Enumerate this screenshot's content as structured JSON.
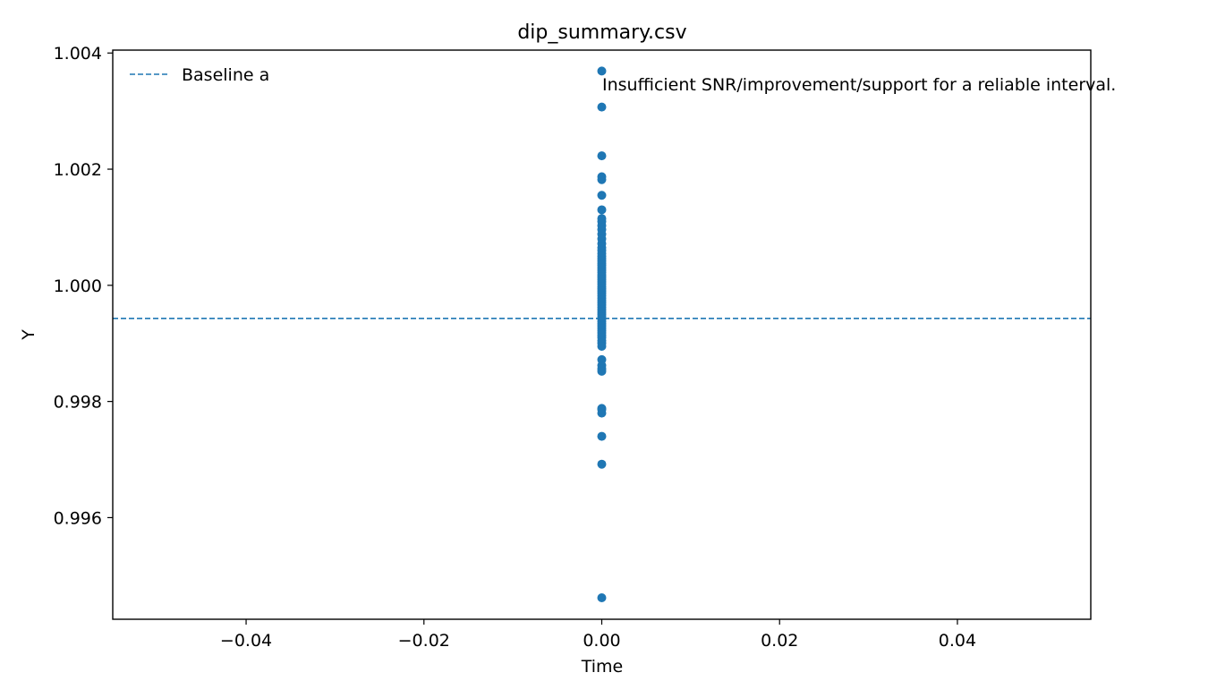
{
  "chart_data": {
    "type": "scatter",
    "title": "dip_summary.csv",
    "xlabel": "Time",
    "ylabel": "Y",
    "xlim": [
      -0.055,
      0.055
    ],
    "ylim": [
      0.99425,
      1.00405
    ],
    "xticks": [
      -0.04,
      -0.02,
      0.0,
      0.02,
      0.04
    ],
    "xtick_labels": [
      "−0.04",
      "−0.02",
      "0.00",
      "0.02",
      "0.04"
    ],
    "yticks": [
      0.996,
      0.998,
      1.0,
      1.002,
      1.004
    ],
    "ytick_labels": [
      "0.996",
      "0.998",
      "1.000",
      "1.002",
      "1.004"
    ],
    "grid": false,
    "legend_position": "top-left",
    "baseline": {
      "name": "Baseline a",
      "value": 0.99943,
      "style": "dashed"
    },
    "annotation": "Insufficient SNR/improvement/support for a reliable interval.",
    "series": [
      {
        "x": [
          0,
          0,
          0,
          0,
          0,
          0,
          0,
          0,
          0,
          0,
          0,
          0,
          0,
          0,
          0,
          0,
          0,
          0,
          0,
          0,
          0,
          0,
          0,
          0,
          0,
          0,
          0,
          0,
          0,
          0,
          0,
          0,
          0,
          0,
          0,
          0,
          0,
          0,
          0,
          0,
          0,
          0,
          0,
          0,
          0,
          0,
          0,
          0,
          0,
          0,
          0,
          0,
          0,
          0,
          0,
          0,
          0,
          0,
          0,
          0,
          0,
          0,
          0,
          0,
          0,
          0
        ],
        "y": [
          1.00369,
          1.00307,
          1.00223,
          1.00187,
          1.00182,
          1.00155,
          1.0013,
          1.0011,
          1.00103,
          1.00096,
          1.00088,
          1.0008,
          1.00072,
          1.00065,
          1.0006,
          1.00055,
          1.0005,
          1.00046,
          1.00042,
          1.00038,
          1.00034,
          1.0003,
          1.00026,
          1.00022,
          1.00018,
          1.00014,
          1.0001,
          1.00006,
          1.00002,
          0.99998,
          0.99994,
          0.9999,
          0.99986,
          0.99982,
          0.99978,
          0.99974,
          0.9997,
          0.99966,
          0.99962,
          0.99958,
          0.99954,
          0.9995,
          0.99946,
          0.99942,
          0.99938,
          0.99934,
          0.9993,
          0.99926,
          0.99922,
          0.99918,
          0.99914,
          0.9991,
          0.99905,
          0.999,
          0.99895,
          0.99872,
          0.99862,
          0.99856,
          0.99852,
          0.99788,
          0.99786,
          0.9978,
          0.9974,
          0.99692,
          0.99462,
          1.00115
        ],
        "color": "#1f77b4"
      }
    ]
  }
}
